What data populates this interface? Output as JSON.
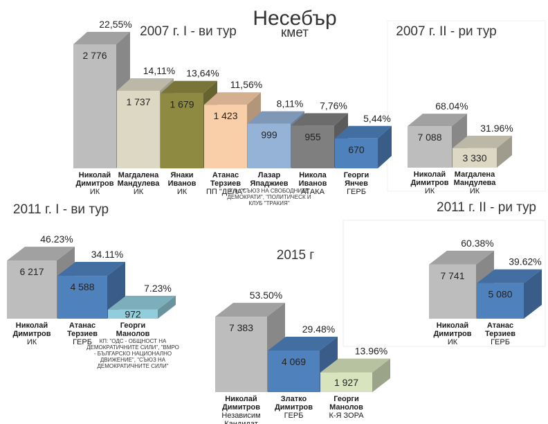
{
  "title": "Несебър",
  "subtitle": "кмет",
  "chart_data": [
    {
      "type": "bar",
      "title": "2007 г. I - ви тур",
      "categories": [
        "Николай Димитров",
        "Магдалена Мандулева",
        "Янаки Иванов",
        "Атанас Терзиев",
        "Лазар Япаджиев",
        "Никола Иванов",
        "Георги Янчев"
      ],
      "parties": [
        "ИК",
        "ИК",
        "ИК",
        "ПП \"ДЕЛА\"",
        "",
        "АТАКА",
        "ГЕРБ"
      ],
      "notes": [
        "",
        "",
        "",
        "",
        "К-я: \"СЪЮЗ НА СВОБОДНИТЕ ДЕМОКРАТИ\", \"ПОЛИТИЧЕСК И КЛУБ \"ТРАКИЯ\"",
        "",
        ""
      ],
      "values": [
        2776,
        1737,
        1679,
        1423,
        999,
        955,
        670
      ],
      "value_labels": [
        "2 776",
        "1 737",
        "1 679",
        "1 423",
        "999",
        "955",
        "670"
      ],
      "percent_labels": [
        "22,55%",
        "14,11%",
        "13,64%",
        "11,56%",
        "8,11%",
        "7,76%",
        "5,44%"
      ],
      "colors": [
        "#bdbdbd",
        "#ddd8c4",
        "#8e8a42",
        "#f9cfaa",
        "#95b3d7",
        "#7f7f7f",
        "#4f81bd"
      ]
    },
    {
      "type": "bar",
      "title": "2007 г. II - ри тур",
      "categories": [
        "Николай Димитров",
        "Магдалена Мандулева"
      ],
      "parties": [
        "ИК",
        "ИК"
      ],
      "notes": [
        "",
        ""
      ],
      "values": [
        7088,
        3330
      ],
      "value_labels": [
        "7 088",
        "3 330"
      ],
      "percent_labels": [
        "68.04%",
        "31.96%"
      ],
      "colors": [
        "#bdbdbd",
        "#ddd8c4"
      ]
    },
    {
      "type": "bar",
      "title": "2011 г. I - ви тур",
      "categories": [
        "Николай Димитров",
        "Атанас Терзиев",
        "Георги Манолов"
      ],
      "parties": [
        "ИК",
        "ГЕРБ",
        ""
      ],
      "notes": [
        "",
        "",
        "КП: \"ОДС - ОБЩНОСТ НА ДЕМОКРАТИЧНИТЕ СИЛИ\", \"ВМРО - БЪЛГАРСКО НАЦИОНАЛНО ДВИЖЕНИЕ\", \"СЪЮЗ НА ДЕМОКРАТИЧНИТЕ СИЛИ\""
      ],
      "values": [
        6217,
        4588,
        972
      ],
      "value_labels": [
        "6 217",
        "4 588",
        "972"
      ],
      "percent_labels": [
        "46.23%",
        "34.11%",
        "7.23%"
      ],
      "colors": [
        "#bdbdbd",
        "#4f81bd",
        "#92cddc"
      ]
    },
    {
      "type": "bar",
      "title": "2015 г",
      "categories": [
        "Николай Димитров",
        "Златко Димитров",
        "Георги Манолов"
      ],
      "parties": [
        "Независим Кандидат",
        "ГЕРБ",
        "К-Я ЗОРА"
      ],
      "notes": [
        "",
        "",
        ""
      ],
      "values": [
        7383,
        4069,
        1927
      ],
      "value_labels": [
        "7 383",
        "4 069",
        "1 927"
      ],
      "percent_labels": [
        "53.50%",
        "29.48%",
        "13.96%"
      ],
      "colors": [
        "#bdbdbd",
        "#4f81bd",
        "#d7e4bd"
      ]
    },
    {
      "type": "bar",
      "title": "2011 г. II - ри тур",
      "categories": [
        "Николай Димитров",
        "Атанас Терзиев"
      ],
      "parties": [
        "ИК",
        "ГЕРБ"
      ],
      "notes": [
        "",
        ""
      ],
      "values": [
        7741,
        5080
      ],
      "value_labels": [
        "7 741",
        "5 080"
      ],
      "percent_labels": [
        "60.38%",
        "39.62%"
      ],
      "colors": [
        "#bdbdbd",
        "#4f81bd"
      ]
    }
  ]
}
